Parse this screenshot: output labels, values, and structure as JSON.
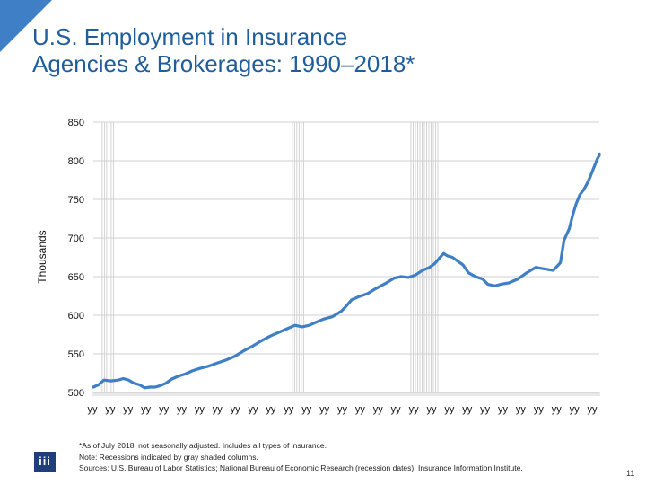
{
  "slide": {
    "title_line1": "U.S. Employment in Insurance",
    "title_line2": "Agencies & Brokerages: 1990–2018*",
    "footnote_lines": [
      "*As of July 2018; not seasonally adjusted. Includes all types of insurance.",
      "Note: Recessions indicated by gray shaded columns.",
      "Sources: U.S. Bureau of Labor Statistics;  National Bureau of Economic Research (recession dates); Insurance Information Institute."
    ],
    "logo_text": "iii",
    "page_number": "11",
    "accent_color": "#3f7fc6",
    "title_color": "#1f5e9a"
  },
  "chart_data": {
    "type": "line",
    "title": "",
    "xlabel": "",
    "ylabel": "Thousands",
    "ylim": [
      500,
      850
    ],
    "yticks": [
      500,
      550,
      600,
      650,
      700,
      750,
      800,
      850
    ],
    "xlim": [
      1990.0,
      2018.6
    ],
    "x_tick_labels": [
      "yy",
      "yy",
      "yy",
      "yy",
      "yy",
      "yy",
      "yy",
      "yy",
      "yy",
      "yy",
      "yy",
      "yy",
      "yy",
      "yy",
      "yy",
      "yy",
      "yy",
      "yy",
      "yy",
      "yy",
      "yy",
      "yy",
      "yy",
      "yy",
      "yy",
      "yy",
      "yy",
      "yy",
      "yy"
    ],
    "recessions": [
      [
        1990.5,
        1991.25
      ],
      [
        2001.25,
        2001.9
      ],
      [
        2007.95,
        2009.5
      ]
    ],
    "grid": true,
    "series": [
      {
        "color": "#3f7fc6",
        "points": [
          [
            1990.0,
            507
          ],
          [
            1990.3,
            510
          ],
          [
            1990.6,
            516
          ],
          [
            1991.0,
            515
          ],
          [
            1991.4,
            516
          ],
          [
            1991.7,
            518
          ],
          [
            1992.0,
            516
          ],
          [
            1992.3,
            512
          ],
          [
            1992.6,
            510
          ],
          [
            1992.9,
            506
          ],
          [
            1993.2,
            507
          ],
          [
            1993.5,
            507
          ],
          [
            1993.8,
            509
          ],
          [
            1994.1,
            512
          ],
          [
            1994.4,
            517
          ],
          [
            1994.8,
            521
          ],
          [
            1995.2,
            524
          ],
          [
            1995.6,
            528
          ],
          [
            1996.0,
            531
          ],
          [
            1996.5,
            534
          ],
          [
            1997.0,
            538
          ],
          [
            1997.5,
            542
          ],
          [
            1998.0,
            547
          ],
          [
            1998.5,
            554
          ],
          [
            1999.0,
            560
          ],
          [
            1999.5,
            567
          ],
          [
            2000.0,
            573
          ],
          [
            2000.5,
            578
          ],
          [
            2001.0,
            583
          ],
          [
            2001.4,
            587
          ],
          [
            2001.8,
            585
          ],
          [
            2002.2,
            587
          ],
          [
            2002.6,
            591
          ],
          [
            2003.0,
            595
          ],
          [
            2003.5,
            598
          ],
          [
            2004.0,
            605
          ],
          [
            2004.3,
            612
          ],
          [
            2004.6,
            620
          ],
          [
            2005.0,
            624
          ],
          [
            2005.5,
            628
          ],
          [
            2006.0,
            635
          ],
          [
            2006.5,
            641
          ],
          [
            2007.0,
            648
          ],
          [
            2007.4,
            650
          ],
          [
            2007.8,
            649
          ],
          [
            2008.2,
            652
          ],
          [
            2008.6,
            658
          ],
          [
            2009.0,
            662
          ],
          [
            2009.3,
            667
          ],
          [
            2009.6,
            675
          ],
          [
            2009.8,
            680
          ],
          [
            2010.0,
            677
          ],
          [
            2010.3,
            675
          ],
          [
            2010.6,
            670
          ],
          [
            2010.9,
            665
          ],
          [
            2011.2,
            655
          ],
          [
            2011.6,
            650
          ],
          [
            2012.0,
            647
          ],
          [
            2012.3,
            640
          ],
          [
            2012.7,
            638
          ],
          [
            2013.0,
            640
          ],
          [
            2013.5,
            642
          ],
          [
            2014.0,
            647
          ],
          [
            2014.5,
            655
          ],
          [
            2015.0,
            662
          ],
          [
            2015.5,
            660
          ],
          [
            2016.0,
            658
          ],
          [
            2016.4,
            668
          ],
          [
            2016.6,
            697
          ],
          [
            2016.9,
            712
          ],
          [
            2017.1,
            730
          ],
          [
            2017.3,
            745
          ],
          [
            2017.5,
            756
          ],
          [
            2017.7,
            762
          ],
          [
            2017.9,
            770
          ],
          [
            2018.1,
            780
          ],
          [
            2018.3,
            792
          ],
          [
            2018.5,
            803
          ],
          [
            2018.7,
            807
          ],
          [
            2019.0,
            808
          ],
          [
            2019.3,
            807
          ],
          [
            2019.6,
            809
          ]
        ]
      }
    ]
  }
}
